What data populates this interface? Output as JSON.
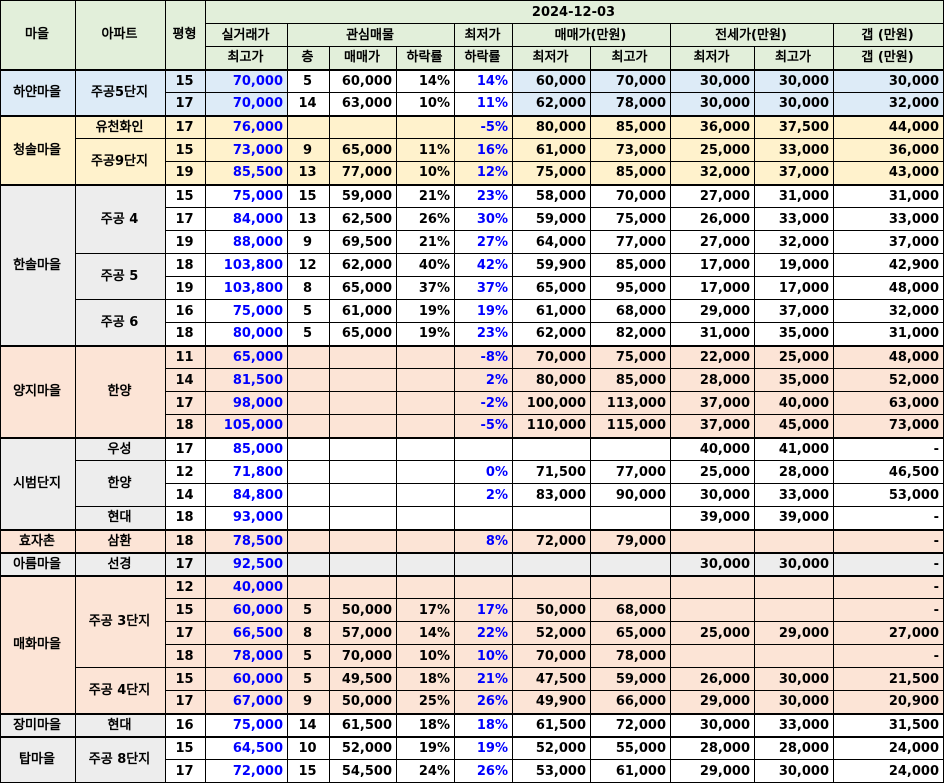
{
  "header": {
    "date": "2024-12-03",
    "maeul": "마을",
    "apt": "아파트",
    "pyeong": "평형",
    "silgeorae_top": "실거래가",
    "silgeorae_bot": "최고가",
    "gwansim": "관심매물",
    "cheung": "층",
    "maemaega": "매매가",
    "harakryul": "하락률",
    "choejeoga_top": "최저가",
    "choejeoga_bot": "하락률",
    "maemae_manwon": "매매가(만원)",
    "maemae_low": "최저가",
    "maemae_high": "최고가",
    "jeonse_manwon": "전세가(만원)",
    "jeonse_low": "최저가",
    "jeonse_high": "최고가",
    "gap_top": "갭 (만원)",
    "gap_bot": "갭 (만원)"
  },
  "villages": {
    "v1": "하얀마을",
    "v2": "청솔마을",
    "v3": "한솔마을",
    "v4": "양지마을",
    "v5": "시범단지",
    "v6": "효자촌",
    "v7": "아름마을",
    "v8": "매화마을",
    "v9": "장미마을",
    "v10": "탑마을"
  },
  "apartments": {
    "a1": "주공5단지",
    "a2": "유천화인",
    "a3": "주공9단지",
    "a4": "주공 4",
    "a5": "주공 5",
    "a6": "주공 6",
    "a7": "한양",
    "a8": "우성",
    "a9": "한양",
    "a10": "현대",
    "a11": "삼환",
    "a12": "선경",
    "a13": "주공 3단지",
    "a14": "주공 4단지",
    "a15": "현대",
    "a16": "주공 8단지"
  },
  "rows": [
    [
      "15",
      "70,000",
      "5",
      "60,000",
      "14%",
      "14%",
      "60,000",
      "70,000",
      "30,000",
      "30,000",
      "30,000"
    ],
    [
      "17",
      "70,000",
      "14",
      "63,000",
      "10%",
      "11%",
      "62,000",
      "78,000",
      "30,000",
      "30,000",
      "32,000"
    ],
    [
      "17",
      "76,000",
      "",
      "",
      "",
      "-5%",
      "80,000",
      "85,000",
      "36,000",
      "37,500",
      "44,000"
    ],
    [
      "15",
      "73,000",
      "9",
      "65,000",
      "11%",
      "16%",
      "61,000",
      "73,000",
      "25,000",
      "33,000",
      "36,000"
    ],
    [
      "19",
      "85,500",
      "13",
      "77,000",
      "10%",
      "12%",
      "75,000",
      "85,000",
      "32,000",
      "37,000",
      "43,000"
    ],
    [
      "15",
      "75,000",
      "15",
      "59,000",
      "21%",
      "23%",
      "58,000",
      "70,000",
      "27,000",
      "31,000",
      "31,000"
    ],
    [
      "17",
      "84,000",
      "13",
      "62,500",
      "26%",
      "30%",
      "59,000",
      "75,000",
      "26,000",
      "33,000",
      "33,000"
    ],
    [
      "19",
      "88,000",
      "9",
      "69,500",
      "21%",
      "27%",
      "64,000",
      "77,000",
      "27,000",
      "32,000",
      "37,000"
    ],
    [
      "18",
      "103,800",
      "12",
      "62,000",
      "40%",
      "42%",
      "59,900",
      "85,000",
      "17,000",
      "19,000",
      "42,900"
    ],
    [
      "19",
      "103,800",
      "8",
      "65,000",
      "37%",
      "37%",
      "65,000",
      "95,000",
      "17,000",
      "17,000",
      "48,000"
    ],
    [
      "16",
      "75,000",
      "5",
      "61,000",
      "19%",
      "19%",
      "61,000",
      "68,000",
      "29,000",
      "37,000",
      "32,000"
    ],
    [
      "18",
      "80,000",
      "5",
      "65,000",
      "19%",
      "23%",
      "62,000",
      "82,000",
      "31,000",
      "35,000",
      "31,000"
    ],
    [
      "11",
      "65,000",
      "",
      "",
      "",
      "-8%",
      "70,000",
      "75,000",
      "22,000",
      "25,000",
      "48,000"
    ],
    [
      "14",
      "81,500",
      "",
      "",
      "",
      "2%",
      "80,000",
      "85,000",
      "28,000",
      "35,000",
      "52,000"
    ],
    [
      "17",
      "98,000",
      "",
      "",
      "",
      "-2%",
      "100,000",
      "113,000",
      "37,000",
      "40,000",
      "63,000"
    ],
    [
      "18",
      "105,000",
      "",
      "",
      "",
      "-5%",
      "110,000",
      "115,000",
      "37,000",
      "45,000",
      "73,000"
    ],
    [
      "17",
      "85,000",
      "",
      "",
      "",
      "",
      "",
      "",
      "40,000",
      "41,000",
      "-"
    ],
    [
      "12",
      "71,800",
      "",
      "",
      "",
      "0%",
      "71,500",
      "77,000",
      "25,000",
      "28,000",
      "46,500"
    ],
    [
      "14",
      "84,800",
      "",
      "",
      "",
      "2%",
      "83,000",
      "90,000",
      "30,000",
      "33,000",
      "53,000"
    ],
    [
      "18",
      "93,000",
      "",
      "",
      "",
      "",
      "",
      "",
      "39,000",
      "39,000",
      "-"
    ],
    [
      "18",
      "78,500",
      "",
      "",
      "",
      "8%",
      "72,000",
      "79,000",
      "",
      "",
      "-"
    ],
    [
      "17",
      "92,500",
      "",
      "",
      "",
      "",
      "",
      "",
      "30,000",
      "30,000",
      "-"
    ],
    [
      "12",
      "40,000",
      "",
      "",
      "",
      "",
      "",
      "",
      "",
      "",
      "-"
    ],
    [
      "15",
      "60,000",
      "5",
      "50,000",
      "17%",
      "17%",
      "50,000",
      "68,000",
      "",
      "",
      "-"
    ],
    [
      "17",
      "66,500",
      "8",
      "57,000",
      "14%",
      "22%",
      "52,000",
      "65,000",
      "25,000",
      "29,000",
      "27,000"
    ],
    [
      "18",
      "78,000",
      "5",
      "70,000",
      "10%",
      "10%",
      "70,000",
      "78,000",
      "",
      "",
      "-"
    ],
    [
      "15",
      "60,000",
      "5",
      "49,500",
      "18%",
      "21%",
      "47,500",
      "59,000",
      "26,000",
      "30,000",
      "21,500"
    ],
    [
      "17",
      "67,000",
      "9",
      "50,000",
      "25%",
      "26%",
      "49,900",
      "66,000",
      "29,000",
      "30,000",
      "20,900"
    ],
    [
      "16",
      "75,000",
      "14",
      "61,500",
      "18%",
      "18%",
      "61,500",
      "72,000",
      "30,000",
      "33,000",
      "31,500"
    ],
    [
      "15",
      "64,500",
      "10",
      "52,000",
      "19%",
      "19%",
      "52,000",
      "55,000",
      "28,000",
      "28,000",
      "24,000"
    ],
    [
      "17",
      "72,000",
      "15",
      "54,500",
      "24%",
      "26%",
      "53,000",
      "61,000",
      "29,000",
      "30,000",
      "24,000"
    ]
  ],
  "colors": {
    "header_bg": "#e2efda",
    "blue_group": "#ddebf7",
    "yellow_group": "#fff2cc",
    "gray_group": "#ededed",
    "pink_group": "#fce4d6",
    "accent_text": "#0000ff"
  }
}
